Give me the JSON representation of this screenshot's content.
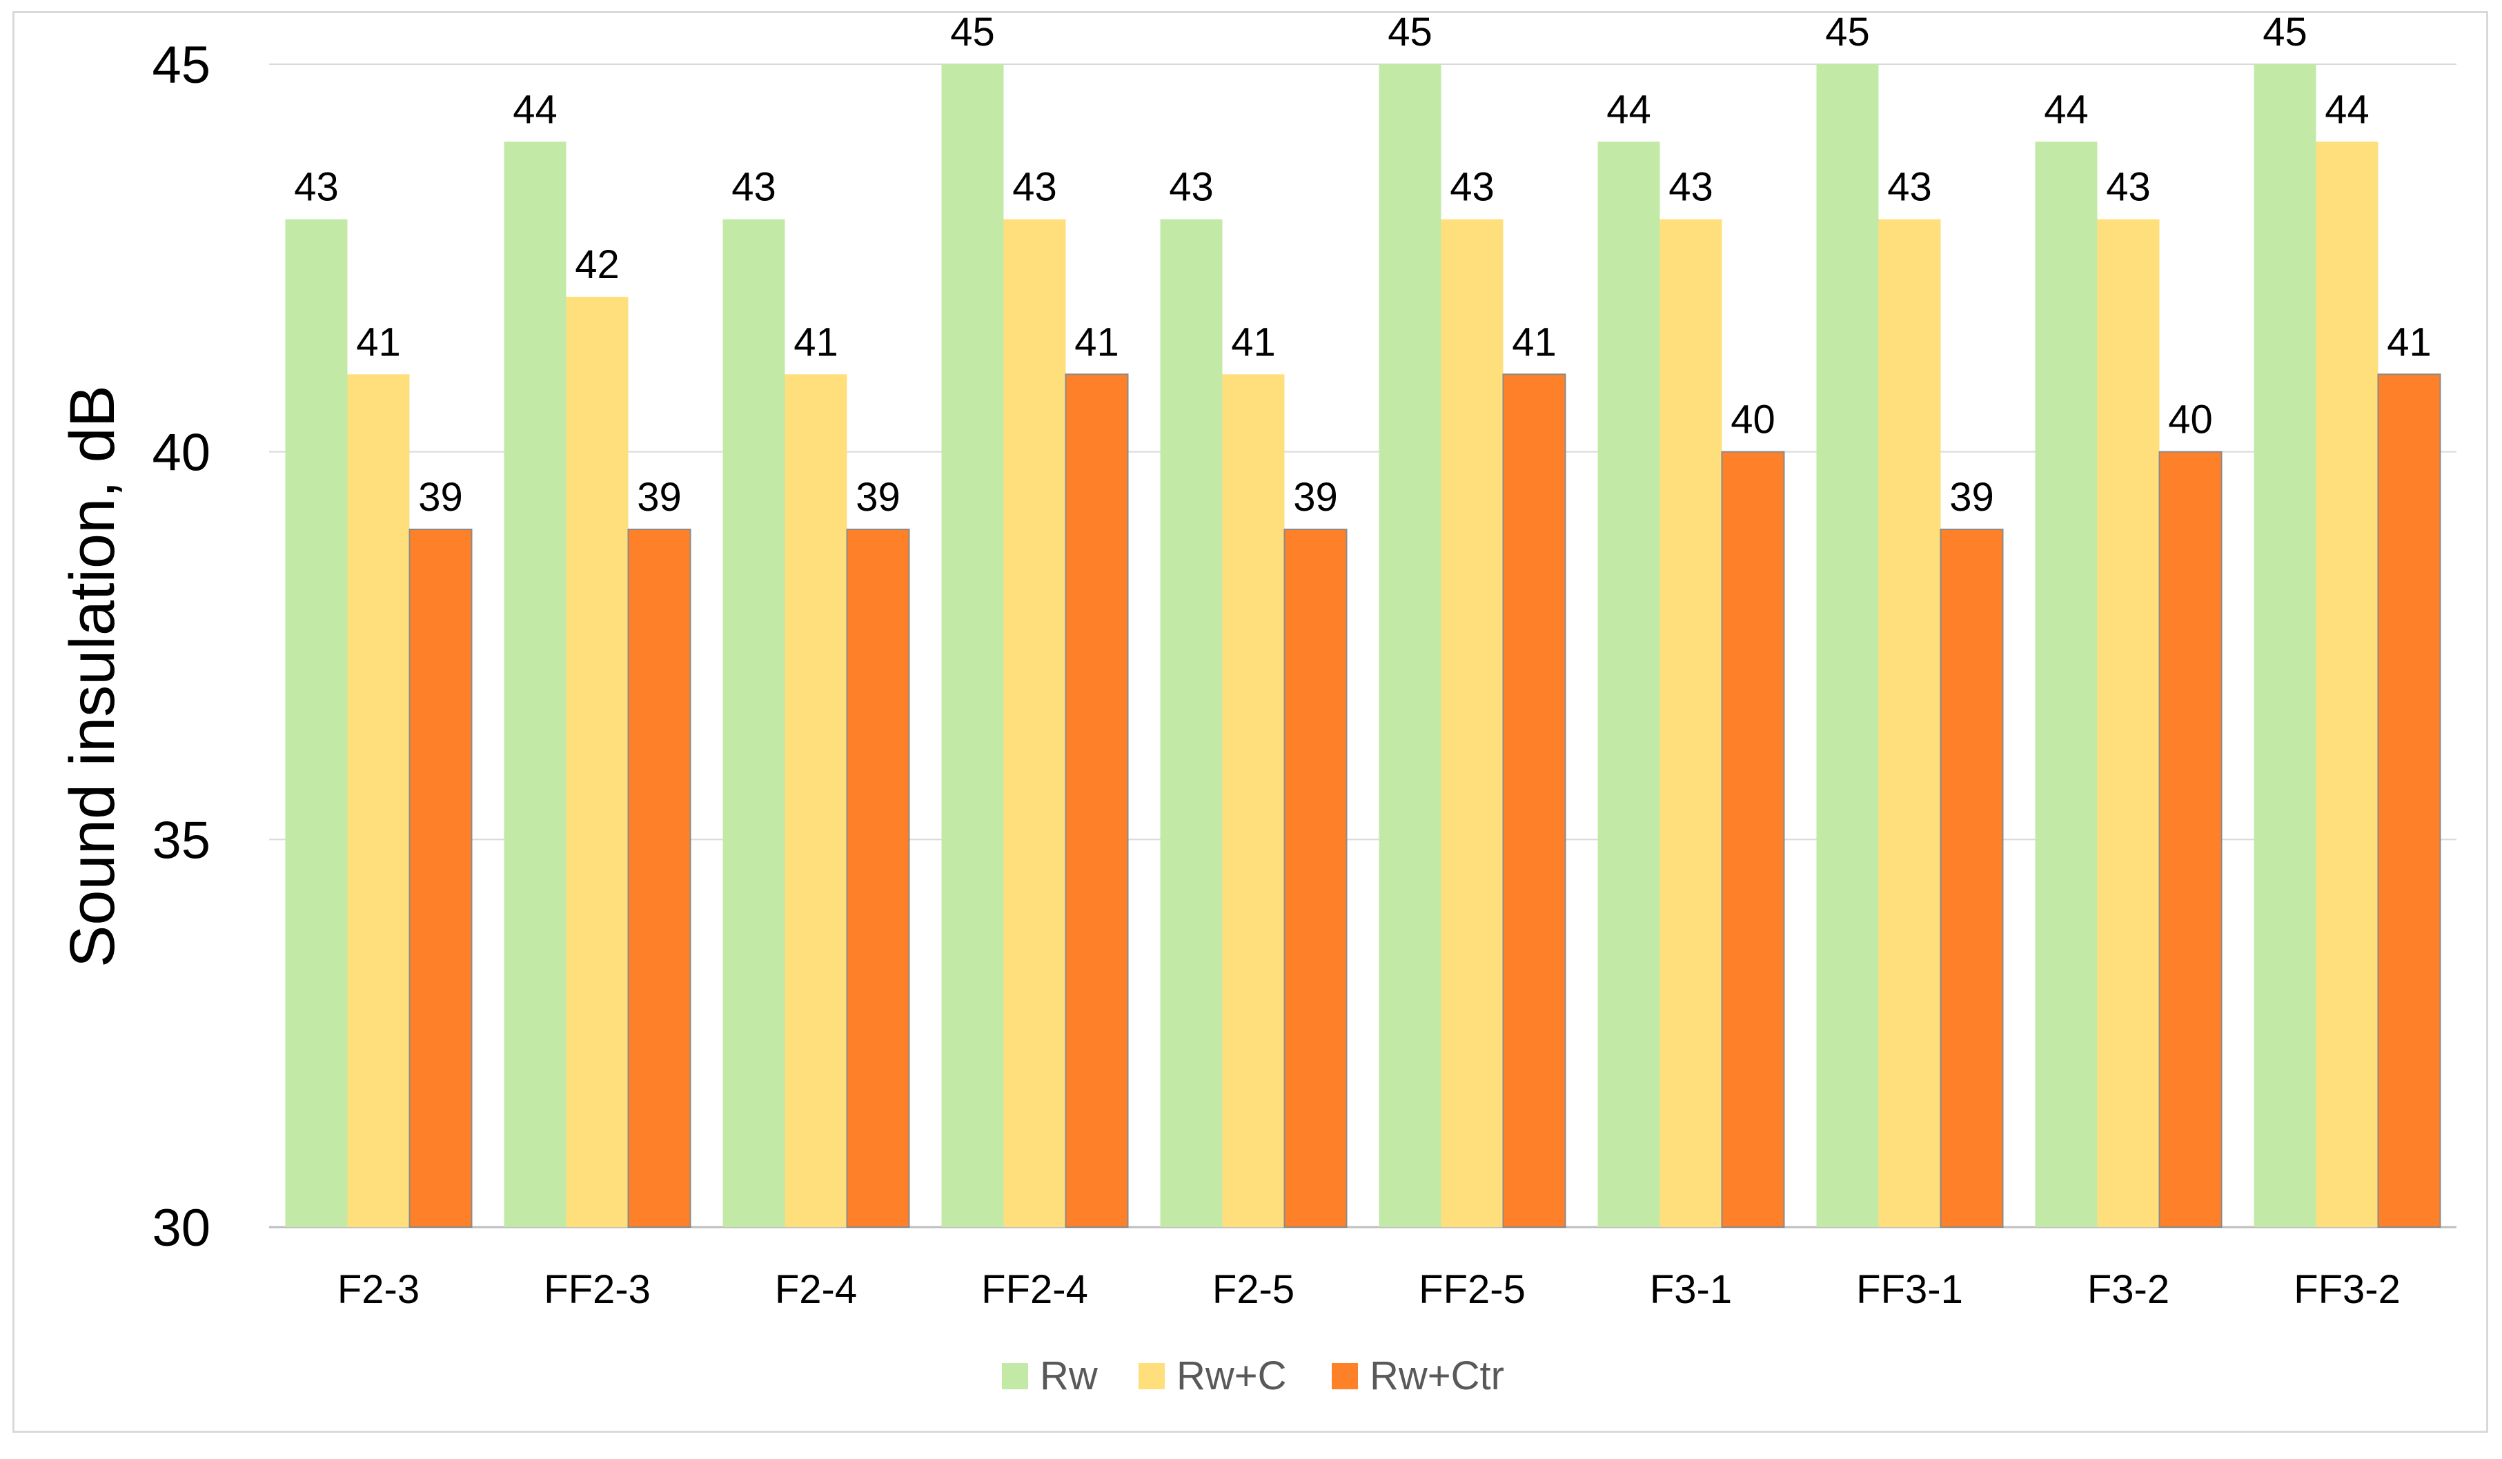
{
  "chart_data": {
    "type": "bar",
    "title": "",
    "xlabel": "",
    "ylabel": "Sound insulation,  dB",
    "ylim": [
      30,
      45
    ],
    "yticks": [
      30,
      35,
      40,
      45
    ],
    "grid": true,
    "legend_position": "bottom",
    "categories": [
      "F2-3",
      "FF2-3",
      "F2-4",
      "FF2-4",
      "F2-5",
      "FF2-5",
      "F3-1",
      "FF3-1",
      "F3-2",
      "FF3-2"
    ],
    "series": [
      {
        "name": "Rw",
        "color": "#c3e9a7",
        "values": [
          43,
          44,
          43,
          45,
          43,
          45,
          44,
          45,
          44,
          45
        ]
      },
      {
        "name": "Rw+C",
        "color": "#ffdf7c",
        "values": [
          41,
          42,
          41,
          43,
          41,
          43,
          43,
          43,
          43,
          44
        ]
      },
      {
        "name": "Rw+Ctr",
        "color": "#fe812a",
        "values": [
          39,
          39,
          39,
          41,
          39,
          41,
          40,
          39,
          40,
          41
        ]
      }
    ],
    "gridline_color": "#d9d9d9",
    "axis_color": "#bfbfbf"
  }
}
